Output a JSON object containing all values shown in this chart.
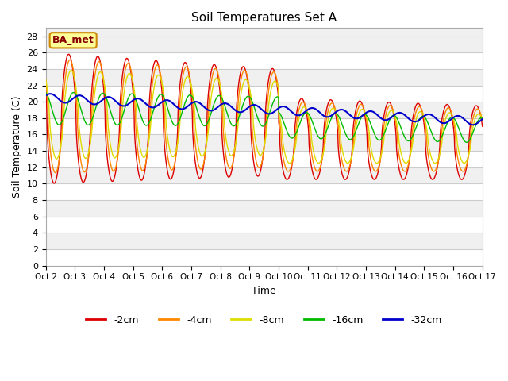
{
  "title": "Soil Temperatures Set A",
  "xlabel": "Time",
  "ylabel": "Soil Temperature (C)",
  "xlim": [
    0,
    360
  ],
  "ylim": [
    0,
    29
  ],
  "yticks": [
    0,
    2,
    4,
    6,
    8,
    10,
    12,
    14,
    16,
    18,
    20,
    22,
    24,
    26,
    28
  ],
  "xtick_labels": [
    "Oct 2",
    "Oct 3",
    "Oct 4",
    "Oct 5",
    "Oct 6",
    "Oct 7",
    "Oct 8",
    "Oct 9",
    "Oct 10",
    "Oct 11",
    "Oct 12",
    "Oct 13",
    "Oct 14",
    "Oct 15",
    "Oct 16",
    "Oct 17"
  ],
  "xtick_positions": [
    0,
    24,
    48,
    72,
    96,
    120,
    144,
    168,
    192,
    216,
    240,
    264,
    288,
    312,
    336,
    360
  ],
  "colors": {
    "-2cm": "#dd0000",
    "-4cm": "#ff8800",
    "-8cm": "#dddd00",
    "-16cm": "#00bb00",
    "-32cm": "#0000cc"
  },
  "label_box": {
    "text": "BA_met",
    "facecolor": "#ffff99",
    "edgecolor": "#cc8800",
    "textcolor": "#880000"
  },
  "bg_color": "#e8e8e8",
  "plot_bg_color": "#f0f0f0",
  "stripe_color": "#ffffff"
}
